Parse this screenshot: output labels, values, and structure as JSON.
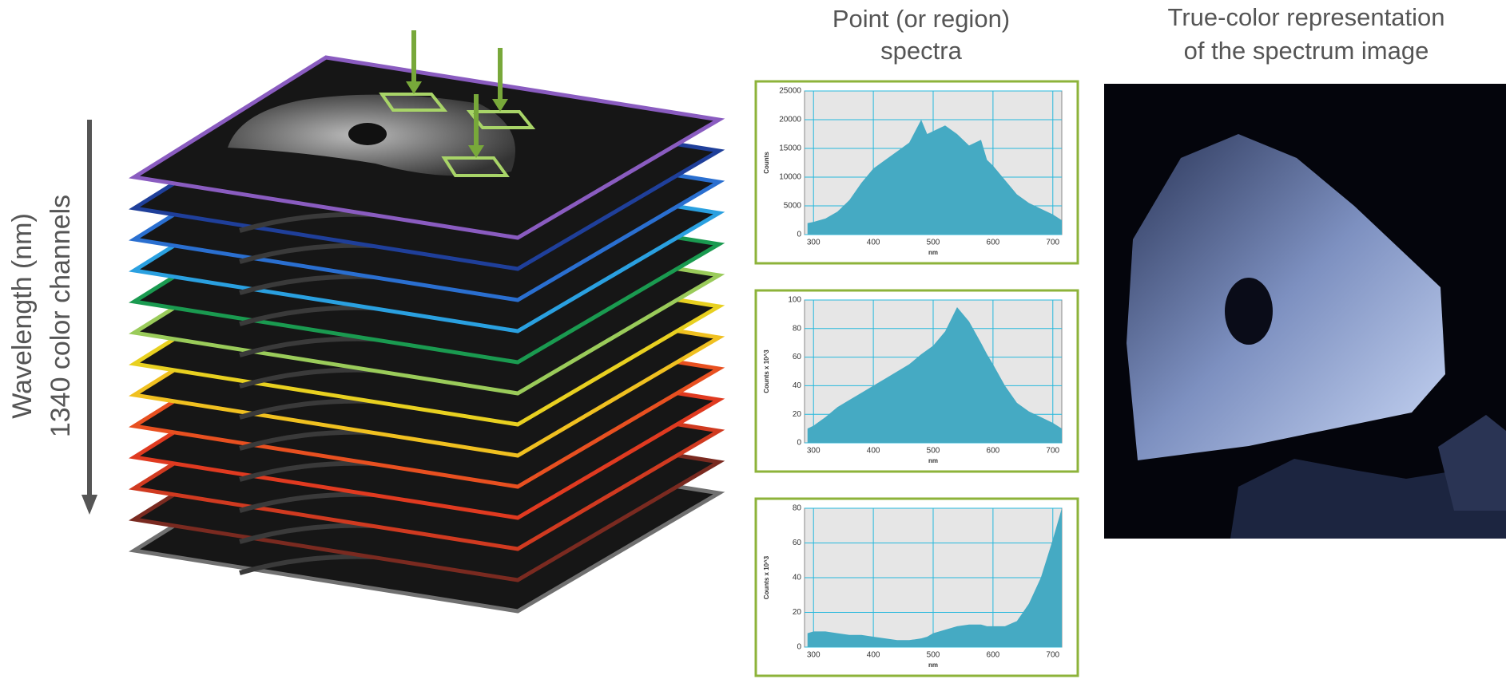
{
  "header": {
    "center_title": [
      "Point (or region)",
      "spectra"
    ],
    "right_title": [
      "True-color representation",
      "of the spectrum image"
    ]
  },
  "stack_label": [
    "Wavelength (nm)",
    "1340 color channels"
  ],
  "chart_data": [
    {
      "type": "area",
      "x_label": "nm",
      "y_label": "Counts",
      "color": "#45aac3",
      "grid": true,
      "x": [
        290,
        300,
        320,
        340,
        360,
        380,
        400,
        420,
        440,
        460,
        480,
        490,
        500,
        520,
        540,
        560,
        580,
        590,
        600,
        620,
        640,
        660,
        680,
        700,
        715
      ],
      "values": [
        2000,
        2200,
        2800,
        4000,
        6000,
        9000,
        11500,
        13000,
        14500,
        16000,
        20000,
        17500,
        18000,
        19000,
        17500,
        15500,
        16500,
        13000,
        12000,
        9500,
        7000,
        5500,
        4500,
        3500,
        2500
      ],
      "xlim": [
        285,
        715
      ],
      "ylim": [
        0,
        25000
      ],
      "xticks": [
        300,
        400,
        500,
        600,
        700
      ],
      "yticks": [
        0,
        5000,
        10000,
        15000,
        20000,
        25000
      ]
    },
    {
      "type": "area",
      "x_label": "nm",
      "y_label": "Counts x 10^3",
      "color": "#45aac3",
      "grid": true,
      "x": [
        290,
        300,
        320,
        340,
        360,
        380,
        400,
        420,
        440,
        460,
        480,
        490,
        500,
        520,
        540,
        560,
        580,
        590,
        600,
        620,
        640,
        660,
        680,
        700,
        715
      ],
      "values": [
        10,
        12,
        18,
        25,
        30,
        35,
        40,
        45,
        50,
        55,
        62,
        65,
        68,
        78,
        95,
        85,
        70,
        62,
        55,
        40,
        28,
        22,
        18,
        14,
        10
      ],
      "xlim": [
        285,
        715
      ],
      "ylim": [
        0,
        100
      ],
      "xticks": [
        300,
        400,
        500,
        600,
        700
      ],
      "yticks": [
        0,
        20,
        40,
        60,
        80,
        100
      ]
    },
    {
      "type": "area",
      "x_label": "nm",
      "y_label": "Counts x 10^3",
      "color": "#45aac3",
      "grid": true,
      "x": [
        290,
        300,
        320,
        340,
        360,
        380,
        400,
        420,
        440,
        460,
        480,
        490,
        500,
        520,
        540,
        560,
        580,
        590,
        600,
        620,
        640,
        660,
        680,
        700,
        715
      ],
      "values": [
        8,
        9,
        9,
        8,
        7,
        7,
        6,
        5,
        4,
        4,
        5,
        6,
        8,
        10,
        12,
        13,
        13,
        12,
        12,
        12,
        15,
        25,
        40,
        62,
        80
      ],
      "xlim": [
        285,
        715
      ],
      "ylim": [
        0,
        80
      ],
      "xticks": [
        300,
        400,
        500,
        600,
        700
      ],
      "yticks": [
        0,
        20,
        40,
        60,
        80
      ]
    }
  ]
}
